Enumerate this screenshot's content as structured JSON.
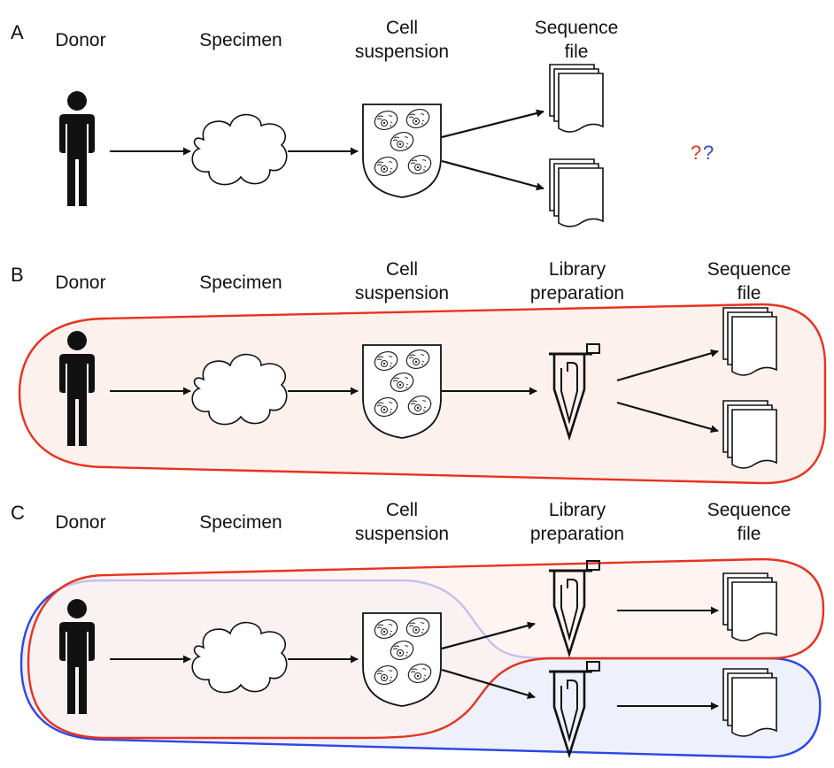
{
  "panels": {
    "A": {
      "letter": "A",
      "donor": "Donor",
      "specimen": "Specimen",
      "cell_1": "Cell",
      "cell_2": "suspension",
      "seq_1": "Sequence",
      "seq_2": "file",
      "q1": "?",
      "q2": "?"
    },
    "B": {
      "letter": "B",
      "donor": "Donor",
      "specimen": "Specimen",
      "cell_1": "Cell",
      "cell_2": "suspension",
      "lib_1": "Library",
      "lib_2": "preparation",
      "seq_1": "Sequence",
      "seq_2": "file"
    },
    "C": {
      "letter": "C",
      "donor": "Donor",
      "specimen": "Specimen",
      "cell_1": "Cell",
      "cell_2": "suspension",
      "lib_1": "Library",
      "lib_2": "preparation",
      "seq_1": "Sequence",
      "seq_2": "file"
    }
  },
  "colors": {
    "red": "#e8321e",
    "blue": "#2c46e6",
    "red_fill": "#fdf1ee",
    "blue_fill": "#eef0fb",
    "overlap_fill": "#f6eaee",
    "ink": "#111111"
  },
  "icons": [
    "person-icon",
    "cloud-icon",
    "cell-suspension-icon",
    "tube-icon",
    "file-stack-icon"
  ]
}
